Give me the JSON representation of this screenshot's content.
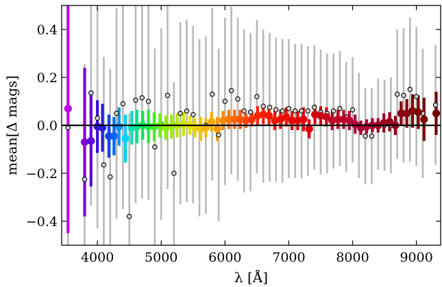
{
  "chart_data": {
    "type": "scatter",
    "title": "",
    "xlabel": "λ [Å]",
    "ylabel": "mean[Δ mags]",
    "xlim": [
      3440,
      9380
    ],
    "ylim": [
      -0.5,
      0.5
    ],
    "xticks": [
      4000,
      5000,
      6000,
      7000,
      8000,
      9000
    ],
    "xtick_labels": [
      "4000",
      "5000",
      "6000",
      "7000",
      "8000",
      "9000"
    ],
    "yticks": [
      -0.4,
      -0.2,
      0.0,
      0.2,
      0.4
    ],
    "ytick_labels": [
      "−0.4",
      "−0.2",
      "0.0",
      "0.2",
      "0.4"
    ],
    "zero_line": 0.0,
    "grid": false,
    "legend": "none",
    "colors": {
      "reference_errorbar": "#b8b8b8",
      "reference_marker_fill": "#d0d0d0",
      "reference_marker_edge": "#000000",
      "zero_line": "#000000"
    },
    "series": [
      {
        "role": "reference",
        "x": [
          3540,
          3800,
          3900,
          4000,
          4100,
          4200,
          4300,
          4400,
          4500,
          4600,
          4700,
          4800,
          4900,
          5000,
          5100,
          5200,
          5300,
          5400,
          5500,
          5600,
          5700,
          5800,
          5900,
          6000,
          6100,
          6200,
          6300,
          6400,
          6500,
          6600,
          6700,
          6800,
          6900,
          7000,
          7100,
          7200,
          7300,
          7400,
          7500,
          7600,
          7700,
          7800,
          7900,
          8000,
          8100,
          8200,
          8300,
          8400,
          8500,
          8600,
          8700,
          8800,
          8900,
          9000,
          9100,
          9300
        ],
        "y": [
          -0.01,
          -0.225,
          0.135,
          0.03,
          -0.165,
          -0.215,
          0.05,
          0.09,
          -0.38,
          0.105,
          0.115,
          0.1,
          -0.09,
          0.005,
          0.125,
          -0.2,
          0.05,
          0.06,
          0.045,
          -0.01,
          0.0,
          0.13,
          -0.04,
          0.1,
          0.145,
          0.11,
          0.06,
          0.055,
          0.12,
          0.08,
          0.075,
          0.065,
          0.06,
          0.07,
          0.06,
          0.06,
          0.06,
          0.075,
          0.055,
          0.05,
          0.06,
          0.07,
          0.035,
          0.065,
          0.0,
          -0.045,
          -0.045,
          0.005,
          0.0,
          0.0,
          0.13,
          0.125,
          0.15,
          0.12,
          0.05,
          0.085
        ],
        "yerr": [
          0.5,
          0.48,
          0.47,
          0.46,
          0.45,
          0.45,
          0.44,
          0.44,
          0.43,
          0.43,
          0.42,
          0.41,
          0.41,
          0.4,
          0.39,
          0.38,
          0.38,
          0.38,
          0.37,
          0.37,
          0.37,
          0.36,
          0.36,
          0.35,
          0.35,
          0.34,
          0.34,
          0.33,
          0.32,
          0.32,
          0.31,
          0.3,
          0.3,
          0.29,
          0.28,
          0.28,
          0.27,
          0.26,
          0.26,
          0.25,
          0.24,
          0.24,
          0.23,
          0.22,
          0.22,
          0.2,
          0.2,
          0.19,
          0.19,
          0.2,
          0.27,
          0.28,
          0.3,
          0.29,
          0.27,
          0.25
        ]
      },
      {
        "role": "measured",
        "x": [
          3540,
          3800,
          3900,
          4000,
          4080,
          4180,
          4260,
          4340,
          4440,
          4540,
          4620,
          4710,
          4800,
          4890,
          4980,
          5070,
          5160,
          5250,
          5350,
          5450,
          5530,
          5620,
          5700,
          5790,
          5880,
          5970,
          6060,
          6150,
          6240,
          6330,
          6420,
          6510,
          6600,
          6690,
          6780,
          6870,
          6960,
          7050,
          7140,
          7230,
          7320,
          7410,
          7500,
          7590,
          7680,
          7770,
          7860,
          7950,
          8040,
          8130,
          8220,
          8310,
          8400,
          8490,
          8580,
          8670,
          8760,
          8850,
          8940,
          9030,
          9120,
          9310
        ],
        "y": [
          0.07,
          -0.07,
          -0.065,
          -0.005,
          -0.01,
          -0.045,
          -0.045,
          -0.005,
          -0.055,
          -0.01,
          -0.005,
          0.0,
          -0.005,
          -0.005,
          0.0,
          -0.01,
          -0.005,
          0.0,
          0.005,
          0.0,
          -0.01,
          -0.015,
          -0.01,
          0.015,
          -0.015,
          0.02,
          0.025,
          0.025,
          0.025,
          0.02,
          0.025,
          0.04,
          0.045,
          0.04,
          0.02,
          0.025,
          0.035,
          0.02,
          0.02,
          0.025,
          -0.015,
          0.045,
          0.04,
          0.035,
          0.02,
          0.025,
          0.025,
          0.02,
          0.005,
          -0.01,
          -0.005,
          0.0,
          0.0,
          0.01,
          0.015,
          0.0,
          0.05,
          0.05,
          0.06,
          0.055,
          0.025,
          0.05
        ],
        "yerr": [
          0.52,
          0.31,
          0.19,
          0.11,
          0.1,
          0.09,
          0.08,
          0.08,
          0.1,
          0.07,
          0.07,
          0.06,
          0.07,
          0.06,
          0.05,
          0.05,
          0.05,
          0.05,
          0.05,
          0.04,
          0.04,
          0.05,
          0.04,
          0.04,
          0.05,
          0.04,
          0.04,
          0.04,
          0.04,
          0.03,
          0.03,
          0.04,
          0.04,
          0.04,
          0.04,
          0.04,
          0.04,
          0.04,
          0.04,
          0.05,
          0.04,
          0.04,
          0.04,
          0.04,
          0.04,
          0.04,
          0.04,
          0.04,
          0.04,
          0.03,
          0.03,
          0.03,
          0.03,
          0.04,
          0.04,
          0.04,
          0.05,
          0.06,
          0.07,
          0.07,
          0.09,
          0.09
        ]
      }
    ]
  }
}
